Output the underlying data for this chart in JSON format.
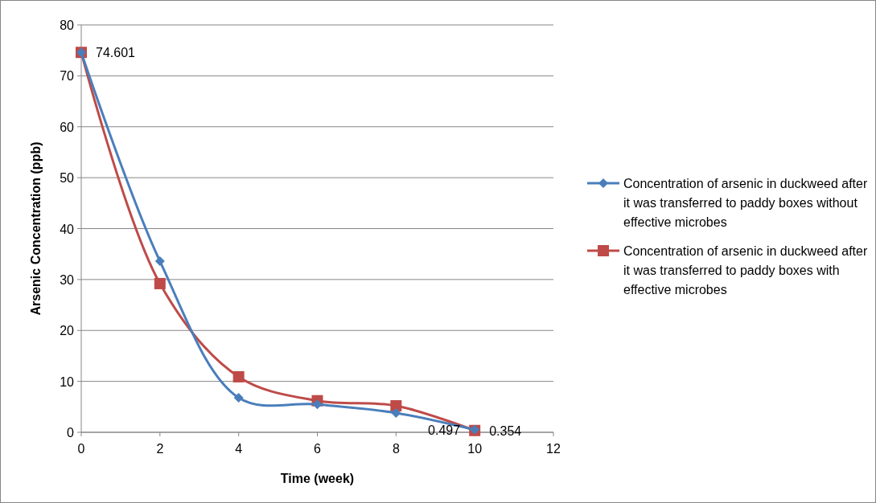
{
  "chart_data": {
    "type": "line",
    "xlabel": "Time (week)",
    "ylabel": "Arsenic Concentration (ppb)",
    "x": [
      0,
      2,
      4,
      6,
      8,
      10
    ],
    "xlim": [
      0,
      12
    ],
    "xticks": [
      0,
      2,
      4,
      6,
      8,
      10,
      12
    ],
    "ylim": [
      0,
      80
    ],
    "yticks": [
      0,
      10,
      20,
      30,
      40,
      50,
      60,
      70,
      80
    ],
    "grid": "y",
    "legend": "right",
    "series": [
      {
        "name": "Concentration of arsenic in duckweed after it was transferred to paddy boxes without effective microbes",
        "color": "#4a7ebb",
        "marker": "diamond",
        "values": [
          74.601,
          33.6,
          6.8,
          5.5,
          3.8,
          0.497
        ],
        "value_labels": [
          null,
          null,
          null,
          null,
          null,
          "0.497"
        ]
      },
      {
        "name": "Concentration of arsenic in duckweed after it was transferred to paddy boxes with effective microbes",
        "color": "#be4b48",
        "marker": "square",
        "values": [
          74.601,
          29.2,
          10.9,
          6.2,
          5.2,
          0.354
        ],
        "value_labels": [
          "74.601",
          null,
          null,
          null,
          null,
          "0.354"
        ]
      }
    ]
  }
}
